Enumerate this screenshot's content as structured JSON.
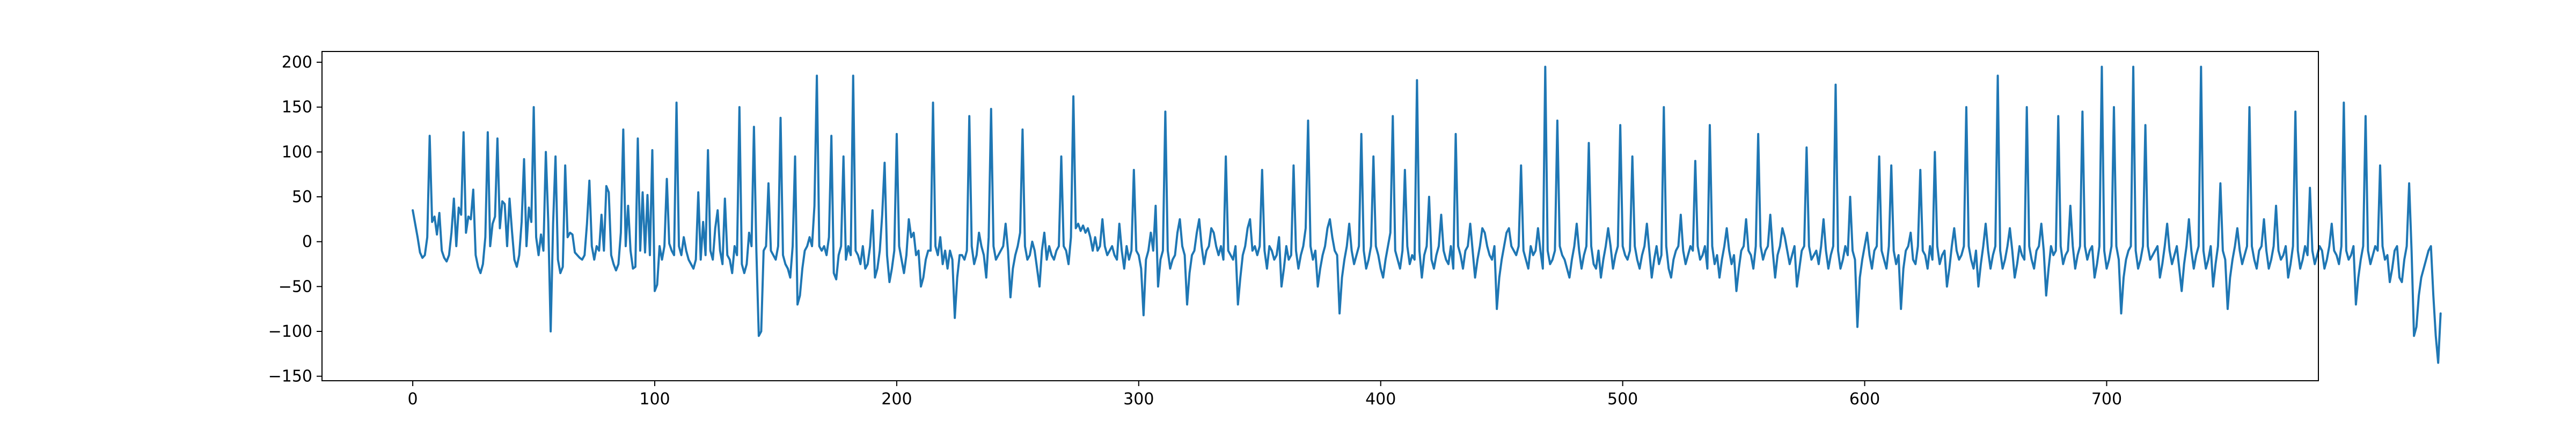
{
  "chart_data": {
    "type": "line",
    "title": "",
    "xlabel": "",
    "ylabel": "",
    "xlim": [
      -37.5,
      787.5
    ],
    "ylim": [
      -155,
      212
    ],
    "x_ticks": [
      0,
      100,
      200,
      300,
      400,
      500,
      600,
      700
    ],
    "y_ticks": [
      -150,
      -100,
      -50,
      0,
      50,
      100,
      150,
      200
    ],
    "grid": false,
    "legend": "none",
    "series": [
      {
        "color": "#1f77b4",
        "x_start": 0,
        "x_step": 1,
        "values": [
          35,
          20,
          5,
          -12,
          -18,
          -15,
          5,
          118,
          22,
          28,
          8,
          32,
          -10,
          -18,
          -22,
          -15,
          10,
          48,
          -5,
          38,
          30,
          122,
          10,
          28,
          25,
          58,
          -15,
          -28,
          -35,
          -25,
          5,
          122,
          -5,
          20,
          28,
          115,
          15,
          45,
          42,
          -5,
          48,
          12,
          -20,
          -28,
          -15,
          22,
          92,
          -5,
          38,
          22,
          150,
          5,
          -15,
          8,
          -10,
          100,
          22,
          -100,
          20,
          95,
          -20,
          -35,
          -28,
          85,
          5,
          10,
          8,
          -12,
          -15,
          -18,
          -20,
          -15,
          20,
          68,
          -5,
          -20,
          -5,
          -10,
          30,
          -10,
          62,
          55,
          -15,
          -25,
          -32,
          -25,
          10,
          125,
          -5,
          40,
          -10,
          -30,
          -28,
          115,
          -10,
          55,
          -12,
          52,
          -15,
          102,
          -55,
          -48,
          -5,
          -20,
          -5,
          70,
          -2,
          -10,
          -15,
          155,
          -5,
          -15,
          5,
          -10,
          -20,
          -25,
          -30,
          -20,
          55,
          -20,
          22,
          -15,
          102,
          -10,
          -20,
          15,
          35,
          -10,
          -25,
          48,
          -15,
          -20,
          -35,
          -5,
          -15,
          150,
          -25,
          -35,
          -25,
          10,
          -5,
          128,
          -10,
          -105,
          -100,
          -10,
          -5,
          65,
          -10,
          -15,
          -20,
          -5,
          138,
          -15,
          -25,
          -30,
          -40,
          -5,
          95,
          -70,
          -60,
          -30,
          -10,
          -5,
          5,
          -5,
          40,
          185,
          -5,
          -10,
          -5,
          -15,
          5,
          118,
          -35,
          -42,
          -15,
          -5,
          95,
          -20,
          -5,
          -15,
          185,
          -10,
          -15,
          -25,
          -5,
          -30,
          -25,
          -5,
          35,
          -40,
          -30,
          -10,
          30,
          88,
          -15,
          -45,
          -30,
          -10,
          120,
          -5,
          -20,
          -35,
          -15,
          25,
          5,
          10,
          -15,
          -10,
          -50,
          -40,
          -20,
          -10,
          -10,
          155,
          -5,
          -15,
          5,
          -25,
          -10,
          -30,
          -10,
          -20,
          -85,
          -40,
          -15,
          -15,
          -20,
          -10,
          140,
          -5,
          -25,
          -15,
          10,
          -5,
          -15,
          -40,
          5,
          148,
          -5,
          -20,
          -15,
          -10,
          -5,
          20,
          -10,
          -62,
          -30,
          -15,
          -5,
          10,
          125,
          -5,
          -20,
          -15,
          0,
          -10,
          -30,
          -50,
          -10,
          10,
          -20,
          -5,
          -15,
          -20,
          -10,
          -5,
          95,
          -5,
          -10,
          -25,
          5,
          162,
          15,
          20,
          12,
          18,
          10,
          15,
          5,
          -10,
          5,
          -10,
          -5,
          25,
          -5,
          -15,
          -10,
          -5,
          -15,
          -20,
          20,
          -10,
          -30,
          -5,
          -20,
          -10,
          80,
          -10,
          -15,
          -30,
          -82,
          -20,
          -10,
          10,
          -10,
          40,
          -50,
          -20,
          -10,
          145,
          -10,
          -30,
          -20,
          -15,
          10,
          25,
          -5,
          -15,
          -70,
          -35,
          -15,
          -10,
          10,
          25,
          -5,
          -25,
          -10,
          -5,
          15,
          10,
          -5,
          -15,
          -5,
          -20,
          95,
          -10,
          -15,
          -20,
          -5,
          -70,
          -40,
          -15,
          -5,
          15,
          25,
          -10,
          -5,
          -15,
          -5,
          80,
          -10,
          -30,
          -5,
          -10,
          -20,
          -15,
          5,
          -50,
          -30,
          -5,
          -20,
          -15,
          85,
          -10,
          -30,
          -15,
          -5,
          15,
          135,
          -5,
          -20,
          -10,
          -50,
          -30,
          -15,
          -5,
          15,
          25,
          5,
          -10,
          -15,
          -80,
          -40,
          -20,
          -5,
          20,
          -10,
          -25,
          -15,
          -5,
          120,
          -10,
          -30,
          -20,
          -5,
          95,
          -5,
          -15,
          -30,
          -40,
          -20,
          -5,
          10,
          140,
          -10,
          -20,
          -30,
          -10,
          80,
          -5,
          -25,
          -15,
          -20,
          180,
          -10,
          -40,
          -15,
          -5,
          50,
          -20,
          -30,
          -15,
          -5,
          30,
          -10,
          -20,
          -25,
          -5,
          -30,
          120,
          -5,
          -15,
          -30,
          -10,
          -5,
          20,
          -10,
          -40,
          -20,
          -5,
          15,
          10,
          -5,
          -15,
          -20,
          -5,
          -75,
          -40,
          -20,
          -5,
          10,
          15,
          -5,
          -10,
          -15,
          -5,
          85,
          -10,
          -20,
          -30,
          -5,
          -15,
          -10,
          15,
          -10,
          -30,
          195,
          -10,
          -25,
          -20,
          -10,
          135,
          -5,
          -15,
          -20,
          -30,
          -40,
          -20,
          -5,
          20,
          -10,
          -30,
          -15,
          -5,
          110,
          -5,
          -25,
          -30,
          -10,
          -40,
          -20,
          -5,
          15,
          -5,
          -30,
          -15,
          -5,
          130,
          -5,
          -15,
          -20,
          -10,
          95,
          -5,
          -20,
          -30,
          -15,
          -5,
          20,
          -10,
          -40,
          -20,
          -5,
          -25,
          -15,
          150,
          -5,
          -30,
          -40,
          -20,
          -10,
          -5,
          30,
          -10,
          -25,
          -15,
          -5,
          -10,
          90,
          -5,
          -20,
          -15,
          -5,
          -30,
          130,
          -5,
          -25,
          -15,
          -40,
          -20,
          -5,
          15,
          -10,
          -25,
          -15,
          -55,
          -30,
          -10,
          -5,
          25,
          -10,
          -15,
          -30,
          -5,
          120,
          -5,
          -20,
          -10,
          -5,
          30,
          -10,
          -40,
          -15,
          -5,
          15,
          5,
          -10,
          -25,
          -15,
          -5,
          -50,
          -30,
          -10,
          -5,
          105,
          -5,
          -20,
          -15,
          -10,
          -25,
          -5,
          25,
          -10,
          -30,
          -15,
          -5,
          175,
          -10,
          -30,
          -20,
          -5,
          -15,
          50,
          -10,
          -20,
          -95,
          -40,
          -20,
          -5,
          10,
          -15,
          -30,
          -10,
          -5,
          95,
          -10,
          -20,
          -30,
          -5,
          85,
          -10,
          -25,
          -15,
          -75,
          -30,
          -10,
          -5,
          10,
          -20,
          -25,
          -5,
          80,
          -10,
          -15,
          -30,
          -5,
          -20,
          100,
          -5,
          -25,
          -15,
          -10,
          -50,
          -30,
          -5,
          15,
          -10,
          -20,
          -15,
          -5,
          150,
          -5,
          -20,
          -30,
          -10,
          -50,
          -25,
          -5,
          20,
          -10,
          -30,
          -15,
          -5,
          185,
          -10,
          -30,
          -20,
          -5,
          15,
          -10,
          -40,
          -25,
          -5,
          -15,
          -20,
          150,
          -5,
          -20,
          -30,
          -10,
          -5,
          20,
          -10,
          -60,
          -30,
          -5,
          -15,
          -10,
          140,
          -5,
          -25,
          -15,
          -10,
          40,
          -5,
          -30,
          -15,
          -5,
          145,
          -5,
          -20,
          -10,
          -5,
          -40,
          -25,
          -5,
          195,
          -10,
          -30,
          -20,
          -5,
          150,
          -5,
          -20,
          -80,
          -40,
          -20,
          -10,
          -5,
          195,
          -10,
          -30,
          -20,
          -5,
          130,
          -5,
          -20,
          -15,
          -10,
          -5,
          -40,
          -25,
          -5,
          20,
          -10,
          -25,
          -15,
          -5,
          -30,
          -55,
          -25,
          -5,
          25,
          -10,
          -30,
          -15,
          -5,
          195,
          -10,
          -30,
          -20,
          -5,
          -50,
          -25,
          -5,
          65,
          -10,
          -20,
          -75,
          -40,
          -20,
          -5,
          15,
          -10,
          -25,
          -15,
          -5,
          150,
          -5,
          -20,
          -30,
          -10,
          -5,
          25,
          -10,
          -30,
          -20,
          -5,
          40,
          -10,
          -20,
          -15,
          -5,
          -40,
          -25,
          -5,
          145,
          -10,
          -30,
          -20,
          -5,
          -15,
          60,
          -10,
          -25,
          -15,
          -5,
          -10,
          -30,
          -20,
          -5,
          20,
          -10,
          -15,
          -25,
          -5,
          155,
          -10,
          -20,
          -15,
          -5,
          -70,
          -40,
          -20,
          -5,
          140,
          -10,
          -25,
          -15,
          -5,
          -10,
          85,
          -5,
          -20,
          -15,
          -45,
          -30,
          -10,
          -5,
          -40,
          -45,
          -20,
          -5,
          65,
          -10,
          -105,
          -95,
          -60,
          -40,
          -30,
          -20,
          -10,
          -5,
          -60,
          -105,
          -135,
          -80
        ]
      }
    ]
  }
}
